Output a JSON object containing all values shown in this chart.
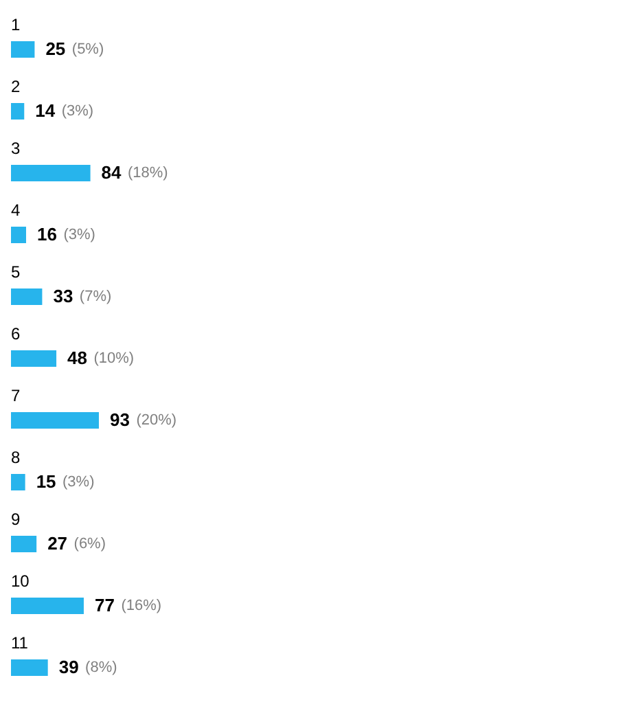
{
  "chart_data": {
    "type": "bar",
    "orientation": "horizontal",
    "categories": [
      "1",
      "2",
      "3",
      "4",
      "5",
      "6",
      "7",
      "8",
      "9",
      "10",
      "11"
    ],
    "values": [
      25,
      14,
      84,
      16,
      33,
      48,
      93,
      15,
      27,
      77,
      39
    ],
    "data_labels": true,
    "annotations": [
      {
        "text": "(5%)",
        "x": 25,
        "y": "1"
      },
      {
        "text": "(3%)",
        "x": 14,
        "y": "2"
      },
      {
        "text": "(18%)",
        "x": 84,
        "y": "3"
      },
      {
        "text": "(3%)",
        "x": 16,
        "y": "4"
      },
      {
        "text": "(7%)",
        "x": 33,
        "y": "5"
      },
      {
        "text": "(10%)",
        "x": 48,
        "y": "6"
      },
      {
        "text": "(20%)",
        "x": 93,
        "y": "7"
      },
      {
        "text": "(3%)",
        "x": 15,
        "y": "8"
      },
      {
        "text": "(6%)",
        "x": 27,
        "y": "9"
      },
      {
        "text": "(16%)",
        "x": 77,
        "y": "10"
      },
      {
        "text": "(8%)",
        "x": 39,
        "y": "11"
      }
    ],
    "color": "#27b4ec"
  }
}
